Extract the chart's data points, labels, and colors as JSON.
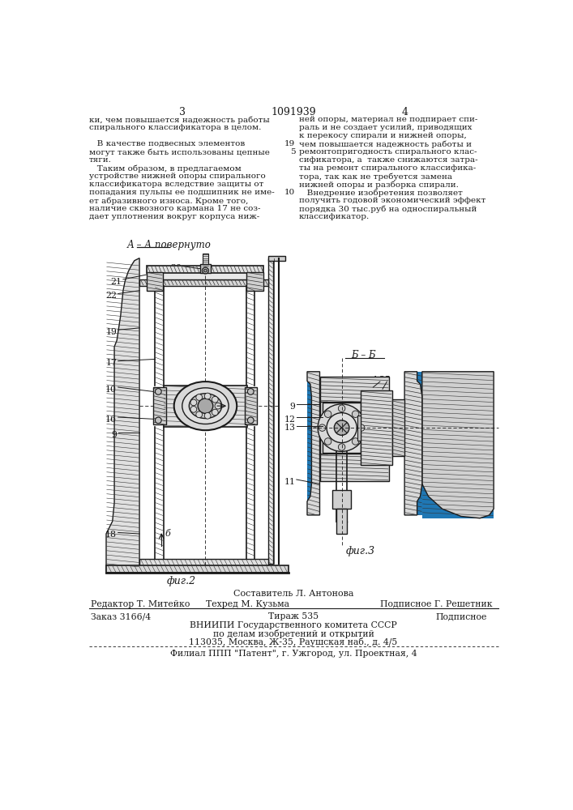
{
  "page_number_left": "3",
  "page_number_center": "1091939",
  "page_number_right": "4",
  "text_left_col": [
    "ки, чем повышается надежность работы",
    "спирального классификатора в целом.",
    "",
    "   В качестве подвесных элементов 19",
    "могут также быть использованы цепные  5",
    "тяги.",
    "   Таким образом, в предлагаемом",
    "устройстве нижней опоры спирального",
    "классификатора вследствие защиты от",
    "попадания пульпы ее подшипник не име-10",
    "ет абразивного износа. Кроме того,",
    "наличие сквозного кармана 17 не соз-",
    "дает уплотнения вокруг корпуса ниж-"
  ],
  "text_right_col": [
    "ней опоры, материал не подпирает спи-",
    "раль и не создает усилий, приводящих",
    "к перекосу спирали и нижней опоры,",
    "чем повышается надежность работы и",
    "ремонтопригодность спирального клас-",
    "сификатора, а  также снижаются затра-",
    "ты на ремонт спирального классифика-",
    "тора, так как не требуется замена",
    "нижней опоры и разборка спирали.",
    "   Внедрение изобретения позволяет",
    "получить годовой экономический эффект",
    "порядка 30 тыс.руб на односпиральный",
    "классификатор."
  ],
  "fig2_label": "фиг.2",
  "fig3_label": "фиг.3",
  "section_label_top": "А – А повернуто",
  "section_label_bb": "Б – Б",
  "footer_composer": "Составитель Л. Антонова",
  "footer_line1_left": "Редактор Т. Митейко",
  "footer_line1_center": "Техред М. Кузьма",
  "footer_line1_right": "Подписное Г. Решетник",
  "footer_order": "Заказ 3166/4",
  "footer_copies": "Тираж 535",
  "footer_signed": "Подписное",
  "footer_vnipi": "ВНИИПИ Государственного комитета СССР",
  "footer_vnipi2": "по делам изобретений и открытий",
  "footer_address": "113035, Москва, Ж-35, Раушская наб., д. 4/5",
  "footer_branch": "Филиал ППП \"Патент\", г. Ужгород, ул. Проектная, 4",
  "bg_color": "#ffffff",
  "text_color": "#1a1a1a",
  "line_color": "#1a1a1a",
  "hatch_color": "#333333"
}
